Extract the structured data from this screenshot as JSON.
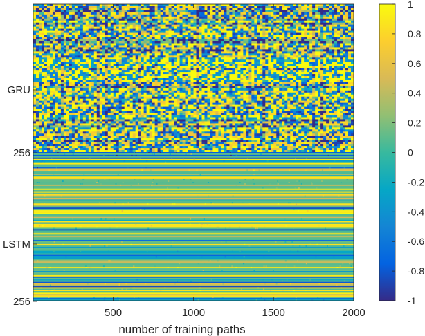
{
  "chart_data": {
    "type": "heatmap",
    "title": "",
    "xlabel": "number of training paths",
    "ylabel": "",
    "xlim": [
      1,
      2000
    ],
    "x_ticks": [
      500,
      1000,
      1500,
      2000
    ],
    "y_tick_labels": [
      "GRU",
      "256",
      "LSTM",
      "256"
    ],
    "rows": [
      {
        "name": "GRU",
        "units": 256,
        "pattern": "mostly saturated near +1 and -1, varying across training paths"
      },
      {
        "name": "LSTM",
        "units": 256,
        "pattern": "near-constant horizontal bands, mostly between -0.6 and 0.4"
      }
    ],
    "colorbar": {
      "min": -1,
      "max": 1,
      "ticks": [
        1,
        0.8,
        0.6,
        0.4,
        0.2,
        0,
        -0.2,
        -0.4,
        -0.6,
        -0.8,
        -1
      ],
      "colormap": "parula"
    },
    "grid": false,
    "legend": "colorbar right"
  }
}
